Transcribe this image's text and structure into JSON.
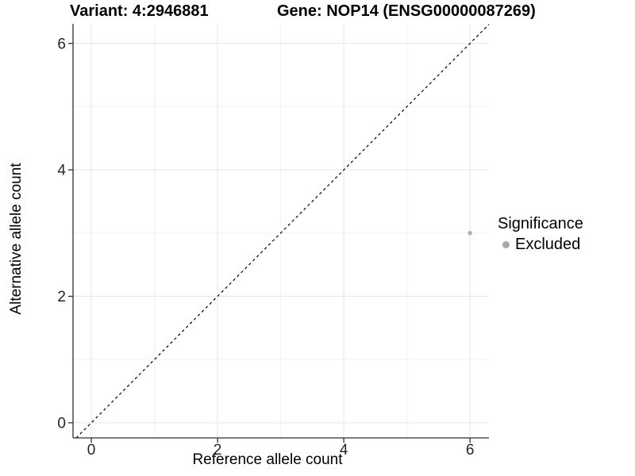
{
  "chart_data": {
    "type": "scatter",
    "titles": {
      "left": "Variant: 4:2946881",
      "right": "Gene: NOP14 (ENSG00000087269)"
    },
    "xlabel": "Reference allele count",
    "ylabel": "Alternative allele count",
    "x_ticks": [
      0,
      2,
      4,
      6
    ],
    "y_ticks": [
      0,
      2,
      4,
      6
    ],
    "x_minor": [
      1,
      3,
      5
    ],
    "y_minor": [
      1,
      3,
      5
    ],
    "xlim": [
      -0.29,
      6.3
    ],
    "ylim": [
      -0.24,
      6.31
    ],
    "grid": true,
    "legend": {
      "title": "Significance",
      "position": "right",
      "entries": [
        {
          "label": "Excluded",
          "color": "#a8a8a8"
        }
      ]
    },
    "series": [
      {
        "name": "Excluded",
        "color": "#b3b3b3",
        "points": [
          {
            "x": 6,
            "y": 3
          }
        ]
      }
    ],
    "reference_line": {
      "slope": 1,
      "intercept": 0,
      "style": "dashed",
      "color": "#000000"
    },
    "theme": {
      "background": "#ffffff",
      "grid_major": "#e8e8e8",
      "grid_minor": "#f2f2f2",
      "axis_color": "#2e2e2e",
      "tick_label_color": "#262626"
    }
  }
}
